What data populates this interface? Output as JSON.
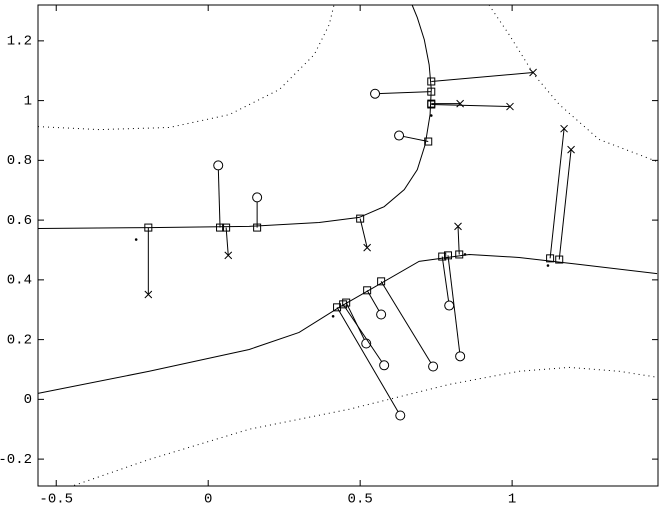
{
  "chart_data": {
    "type": "scatter",
    "xlim": [
      -0.56,
      1.48
    ],
    "ylim": [
      -0.29,
      1.32
    ],
    "xticks": [
      -0.5,
      0,
      0.5,
      1
    ],
    "yticks": [
      -0.2,
      0,
      0.2,
      0.4,
      0.6,
      0.8,
      1,
      1.2
    ],
    "color": "#000000",
    "series": [
      {
        "marker": "circle",
        "x": [
          0.033,
          0.161,
          0.549,
          0.628,
          0.52,
          0.579,
          0.632,
          0.569,
          0.74,
          0.793,
          0.829
        ],
        "y": [
          0.783,
          0.676,
          1.023,
          0.883,
          0.187,
          0.114,
          -0.054,
          0.284,
          0.11,
          0.314,
          0.144
        ],
        "proj_x": [
          0.039,
          0.161,
          0.734,
          0.724,
          0.454,
          0.444,
          0.424,
          0.523,
          0.569,
          0.77,
          0.789
        ],
        "proj_y": [
          0.575,
          0.575,
          1.03,
          0.863,
          0.324,
          0.318,
          0.308,
          0.365,
          0.395,
          0.478,
          0.482
        ]
      },
      {
        "marker": "cross",
        "x": [
          -0.197,
          0.066,
          0.523,
          0.822,
          1.069,
          0.829,
          0.993,
          1.171,
          1.194
        ],
        "y": [
          0.351,
          0.482,
          0.508,
          0.579,
          1.094,
          0.99,
          0.98,
          0.906,
          0.836
        ],
        "proj_x": [
          -0.197,
          0.059,
          0.5,
          0.826,
          0.734,
          0.734,
          0.734,
          1.125,
          1.155
        ],
        "proj_y": [
          0.575,
          0.575,
          0.605,
          0.485,
          1.064,
          0.99,
          0.987,
          0.472,
          0.468
        ]
      },
      {
        "marker": "dot",
        "x": [
          -0.237,
          0.411,
          0.845,
          1.118,
          0.734
        ],
        "y": [
          0.535,
          0.278,
          0.485,
          0.448,
          0.95
        ]
      },
      {
        "marker": "none",
        "style": "solid",
        "x": [
          -0.56,
          -0.194,
          0.135,
          0.365,
          0.497,
          0.579,
          0.645,
          0.688,
          0.714,
          0.73,
          0.734,
          0.727,
          0.711,
          0.688,
          0.671
        ],
        "y": [
          0.572,
          0.575,
          0.579,
          0.592,
          0.609,
          0.645,
          0.702,
          0.769,
          0.853,
          0.953,
          1.037,
          1.12,
          1.204,
          1.278,
          1.32
        ]
      },
      {
        "marker": "none",
        "style": "solid",
        "x": [
          -0.56,
          -0.194,
          0.135,
          0.299,
          0.431,
          0.563,
          0.694,
          0.859,
          1.023,
          1.22,
          1.477
        ],
        "y": [
          0.02,
          0.094,
          0.167,
          0.224,
          0.308,
          0.385,
          0.462,
          0.485,
          0.475,
          0.452,
          0.421
        ]
      },
      {
        "marker": "none",
        "style": "dotted",
        "x": [
          -0.56,
          -0.359,
          -0.128,
          0.069,
          0.234,
          0.349,
          0.398,
          0.414
        ],
        "y": [
          0.913,
          0.903,
          0.91,
          0.953,
          1.037,
          1.154,
          1.254,
          1.32
        ]
      },
      {
        "marker": "none",
        "style": "dotted",
        "x": [
          0.924,
          0.99,
          1.072,
          1.155,
          1.286,
          1.477
        ],
        "y": [
          1.32,
          1.221,
          1.087,
          0.987,
          0.87,
          0.796
        ]
      },
      {
        "marker": "none",
        "style": "dotted",
        "x": [
          -0.441,
          -0.194,
          0.135,
          0.464,
          0.793,
          1.023,
          1.188,
          1.352,
          1.477
        ],
        "y": [
          -0.288,
          -0.201,
          -0.1,
          -0.033,
          0.05,
          0.094,
          0.107,
          0.094,
          0.074
        ]
      }
    ]
  }
}
